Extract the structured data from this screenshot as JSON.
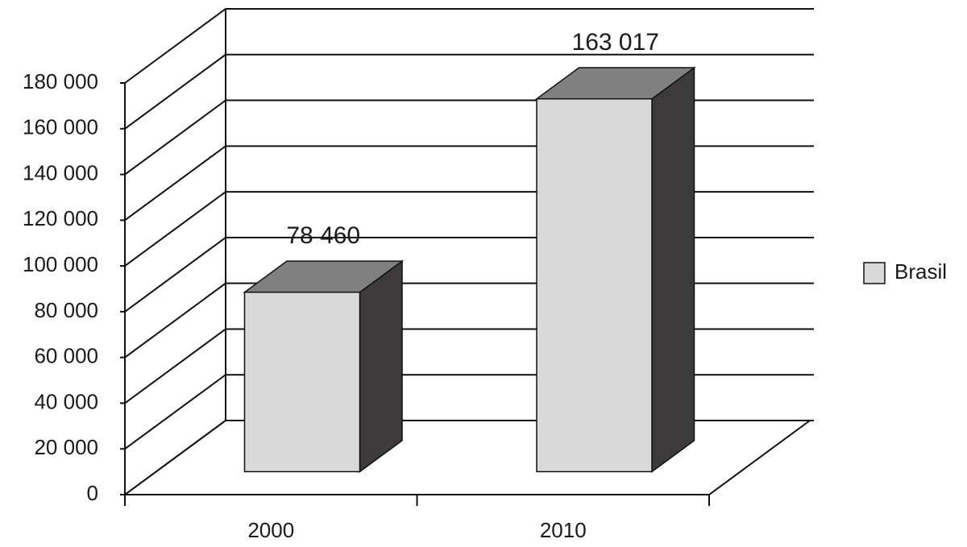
{
  "chart_data": {
    "type": "bar3d",
    "categories": [
      "2000",
      "2010"
    ],
    "series": [
      {
        "name": "Brasil",
        "color": "#d9d9d9",
        "values": [
          78460,
          163017
        ],
        "value_labels": [
          "78 460",
          "163 017"
        ]
      }
    ],
    "ylim": [
      0,
      180000
    ],
    "yticks": [
      0,
      {
        "value": 20000,
        "label": "20 000"
      },
      {
        "value": 40000,
        "label": "40 000"
      },
      {
        "value": 60000,
        "label": "60 000"
      },
      {
        "value": 80000,
        "label": "80 000"
      },
      {
        "value": 100000,
        "label": "100 000"
      },
      {
        "value": 120000,
        "label": "120 000"
      },
      {
        "value": 140000,
        "label": "140 000"
      },
      {
        "value": 160000,
        "label": "160 000"
      },
      {
        "value": 180000,
        "label": "180 000"
      }
    ],
    "grid": true,
    "legend": "right"
  }
}
